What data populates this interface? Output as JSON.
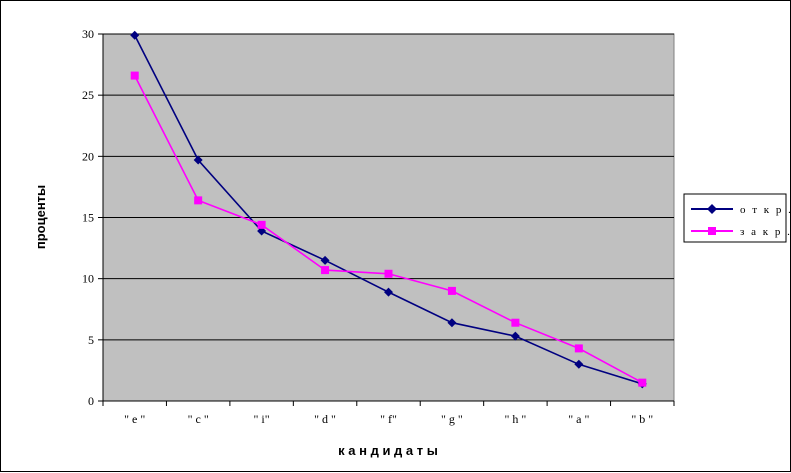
{
  "chart_data": {
    "type": "line",
    "title": "",
    "xlabel": "к а н д и д а т ы",
    "ylabel": "проценты",
    "categories": [
      "\" e \"",
      "\" c \"",
      "\" i\"",
      "\" d \"",
      "\" f\"",
      "\" g \"",
      "\" h \"",
      "\" a \"",
      "\" b \""
    ],
    "ylim": [
      0,
      30
    ],
    "yticks": [
      0,
      5,
      10,
      15,
      20,
      25,
      30
    ],
    "grid": true,
    "legend_position": "right",
    "plot_background": "#c0c0c0",
    "series": [
      {
        "name": "о т к р .",
        "color": "#000080",
        "marker": "diamond",
        "values": [
          29.9,
          19.7,
          13.9,
          11.5,
          8.9,
          6.4,
          5.3,
          3.0,
          1.4
        ]
      },
      {
        "name": "з а к р .",
        "color": "#ff00ff",
        "marker": "square",
        "values": [
          26.6,
          16.4,
          14.4,
          10.7,
          10.4,
          9.0,
          6.4,
          4.3,
          1.5
        ]
      }
    ]
  }
}
